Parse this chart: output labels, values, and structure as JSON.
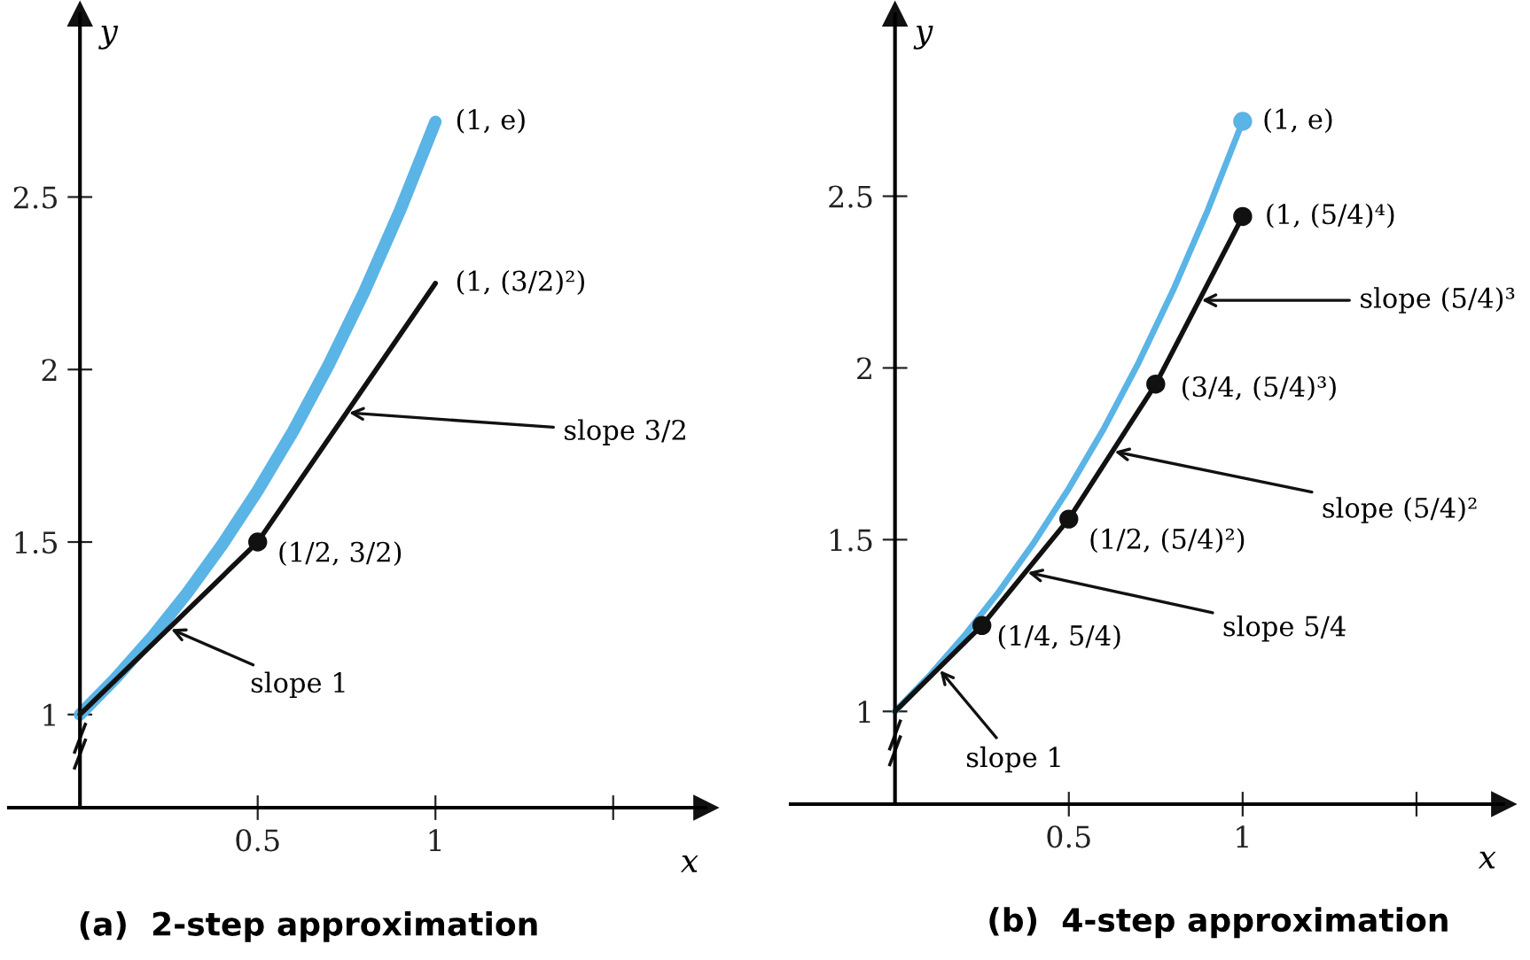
{
  "chart_data": [
    {
      "type": "line",
      "title": "(a)  2-step approximation",
      "xlabel": "x",
      "ylabel": "y",
      "xlim": [
        -0.2,
        1.76
      ],
      "ylim": [
        0.73,
        3.03
      ],
      "xticks": [
        0.5,
        1,
        {
          "value": 1.5,
          "label": null
        }
      ],
      "yticks": [
        1,
        1.5,
        2,
        2.5
      ],
      "grid": false,
      "line_style": "solid",
      "series": [
        {
          "color": "#5ab4e6",
          "x": [
            0,
            0.1,
            0.2,
            0.3,
            0.4,
            0.5,
            0.6,
            0.7,
            0.8,
            0.9,
            1
          ],
          "values": [
            1,
            1.105,
            1.221,
            1.35,
            1.492,
            1.649,
            1.822,
            2.014,
            2.226,
            2.46,
            2.718
          ]
        },
        {
          "color": "#111111",
          "x": [
            0,
            0.5,
            1
          ],
          "values": [
            1,
            1.5,
            2.25
          ]
        },
        {
          "type": "scatter",
          "color": "#111111",
          "x": [
            0.5
          ],
          "values": [
            1.5
          ]
        }
      ],
      "annotations": [
        {
          "text": "(1, e)",
          "x": 1,
          "y": 2.718
        },
        {
          "text": "(1, (3/2)²)",
          "x": 1,
          "y": 2.25
        },
        {
          "text": "slope 3/2",
          "x": 0.75,
          "y": 1.875
        },
        {
          "text": "(1/2, 3/2)",
          "x": 0.5,
          "y": 1.5
        },
        {
          "text": "slope 1",
          "x": 0.25,
          "y": 1.25
        }
      ]
    },
    {
      "type": "line",
      "title": "(b)  4-step approximation",
      "xlabel": "x",
      "ylabel": "y",
      "xlim": [
        -0.3,
        1.75
      ],
      "ylim": [
        0.73,
        3.03
      ],
      "xticks": [
        0.5,
        1,
        {
          "value": 1.5,
          "label": null
        }
      ],
      "yticks": [
        1,
        1.5,
        2,
        2.5
      ],
      "grid": false,
      "line_style": "solid",
      "series": [
        {
          "color": "#5ab4e6",
          "x": [
            0,
            0.1,
            0.2,
            0.3,
            0.4,
            0.5,
            0.6,
            0.7,
            0.8,
            0.9,
            1
          ],
          "values": [
            1,
            1.105,
            1.221,
            1.35,
            1.492,
            1.649,
            1.822,
            2.014,
            2.226,
            2.46,
            2.718
          ]
        },
        {
          "color": "#111111",
          "x": [
            0,
            0.25,
            0.5,
            0.75,
            1
          ],
          "values": [
            1,
            1.25,
            1.56,
            1.953,
            2.441
          ]
        },
        {
          "type": "scatter",
          "color": "#111111",
          "x": [
            0.25,
            0.5,
            0.75,
            1
          ],
          "values": [
            1.25,
            1.56,
            1.953,
            2.441
          ]
        },
        {
          "type": "scatter",
          "color": "#5ab4e6",
          "x": [
            1
          ],
          "values": [
            2.718
          ]
        }
      ],
      "annotations": [
        {
          "text": "(1, e)",
          "x": 1,
          "y": 2.718
        },
        {
          "text": "(1, (5/4)⁴)",
          "x": 1,
          "y": 2.441
        },
        {
          "text": "slope (5/4)³",
          "x": 0.875,
          "y": 2.197
        },
        {
          "text": "(3/4, (5/4)³)",
          "x": 0.75,
          "y": 1.953
        },
        {
          "text": "slope (5/4)²",
          "x": 0.625,
          "y": 1.758
        },
        {
          "text": "(1/2, (5/4)²)",
          "x": 0.5,
          "y": 1.56
        },
        {
          "text": "slope 5/4",
          "x": 0.375,
          "y": 1.406
        },
        {
          "text": "(1/4, 5/4)",
          "x": 0.25,
          "y": 1.25
        },
        {
          "text": "slope 1",
          "x": 0.125,
          "y": 1.125
        }
      ]
    }
  ]
}
